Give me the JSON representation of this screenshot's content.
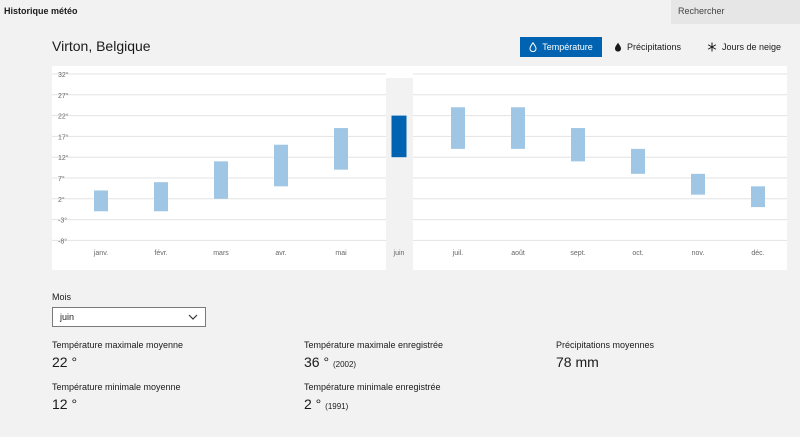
{
  "app": {
    "title": "Historique météo",
    "search_placeholder": "Rechercher"
  },
  "location": "Virton, Belgique",
  "tabs": [
    {
      "label": "Température",
      "icon": "droplet-outline-icon",
      "active": true
    },
    {
      "label": "Précipitations",
      "icon": "droplet-icon",
      "active": false
    },
    {
      "label": "Jours de neige",
      "icon": "snowflake-icon",
      "active": false
    }
  ],
  "chart_data": {
    "type": "bar",
    "subtype": "range",
    "categories": [
      "janv.",
      "févr.",
      "mars",
      "avr.",
      "mai",
      "juin",
      "juil.",
      "août",
      "sept.",
      "oct.",
      "nov.",
      "déc."
    ],
    "y_ticks": [
      "32°",
      "27°",
      "22°",
      "17°",
      "12°",
      "7°",
      "2°",
      "-3°",
      "-8°"
    ],
    "ylim": [
      -8,
      32
    ],
    "min": [
      -1,
      -1,
      2,
      5,
      9,
      12,
      14,
      14,
      11,
      8,
      3,
      0
    ],
    "max": [
      4,
      6,
      11,
      15,
      19,
      22,
      24,
      24,
      19,
      14,
      8,
      5
    ],
    "selected_index": 5,
    "colors": {
      "bar": "#9fc6e4",
      "selected": "#0063b1"
    }
  },
  "month_select": {
    "label": "Mois",
    "value": "juin"
  },
  "stats": {
    "avg_max": {
      "label": "Température maximale moyenne",
      "value": "22 °"
    },
    "avg_min": {
      "label": "Température minimale moyenne",
      "value": "12 °"
    },
    "rec_max": {
      "label": "Température maximale enregistrée",
      "value": "36 °",
      "year": "(2002)"
    },
    "rec_min": {
      "label": "Température minimale enregistrée",
      "value": "2 °",
      "year": "(1991)"
    },
    "precip": {
      "label": "Précipitations moyennes",
      "value": "78 mm"
    }
  }
}
